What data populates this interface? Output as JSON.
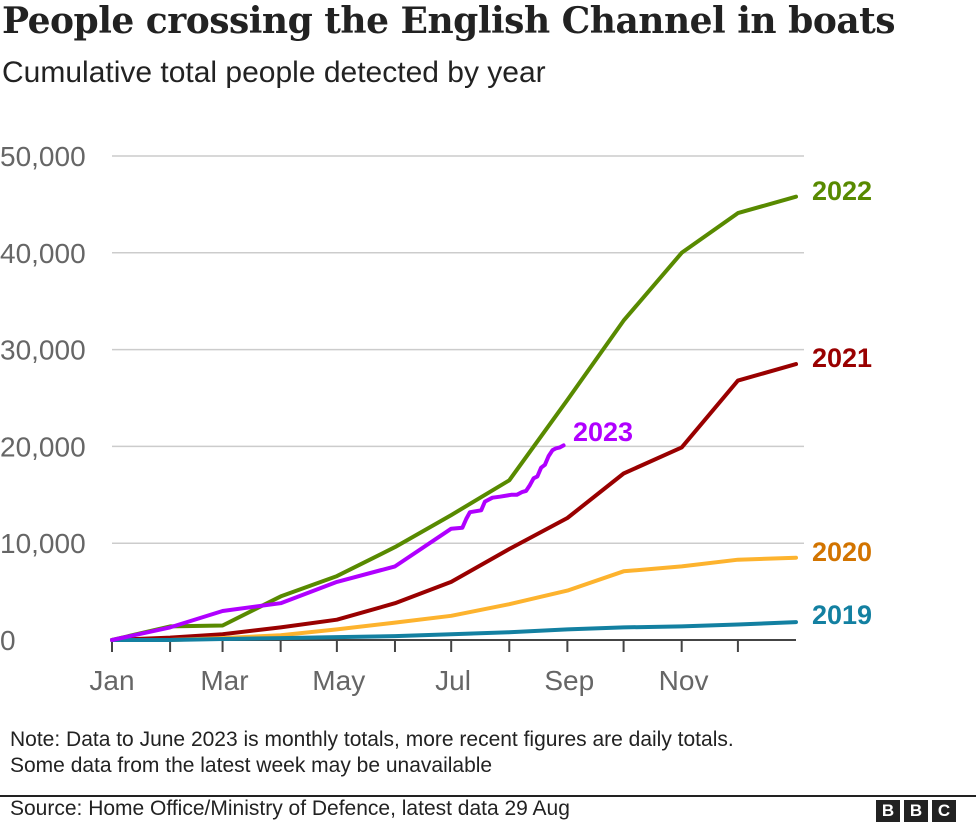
{
  "chart_data": {
    "type": "line",
    "title": "People crossing the English Channel in boats",
    "subtitle": "Cumulative total people detected by year",
    "xlabel": "",
    "ylabel": "",
    "ylim": [
      0,
      50000
    ],
    "yticks": [
      0,
      10000,
      20000,
      30000,
      40000,
      50000
    ],
    "ytick_labels": [
      "0",
      "10,000",
      "20,000",
      "30,000",
      "40,000",
      "50,000"
    ],
    "xtick_labels": [
      "Jan",
      "Mar",
      "May",
      "Jul",
      "Sep",
      "Nov"
    ],
    "xtick_dates": [
      "01-01",
      "03-01",
      "05-01",
      "07-01",
      "09-01",
      "11-01"
    ],
    "grid": true,
    "legend": "direct labels at line ends",
    "series": [
      {
        "name": "2022",
        "color": "#588a00",
        "x": [
          "01-01",
          "01-31",
          "02-28",
          "03-31",
          "04-30",
          "05-31",
          "06-30",
          "07-31",
          "08-31",
          "09-30",
          "10-31",
          "11-30",
          "12-31"
        ],
        "y": [
          0,
          1400,
          1500,
          4500,
          6600,
          9600,
          12900,
          16500,
          24800,
          33000,
          40000,
          44100,
          45800
        ]
      },
      {
        "name": "2021",
        "color": "#990000",
        "x": [
          "01-01",
          "01-31",
          "02-28",
          "03-31",
          "04-30",
          "05-31",
          "06-30",
          "07-31",
          "08-31",
          "09-30",
          "10-31",
          "11-30",
          "12-31"
        ],
        "y": [
          0,
          250,
          600,
          1300,
          2100,
          3800,
          6000,
          9400,
          12600,
          17200,
          19900,
          26800,
          28500
        ]
      },
      {
        "name": "2020",
        "color": "#fdb32e",
        "label_color": "#d27400",
        "x": [
          "01-01",
          "01-31",
          "02-28",
          "03-31",
          "04-30",
          "05-31",
          "06-30",
          "07-31",
          "08-31",
          "09-30",
          "10-31",
          "11-30",
          "12-31"
        ],
        "y": [
          0,
          0,
          200,
          500,
          1100,
          1800,
          2500,
          3700,
          5100,
          7100,
          7600,
          8300,
          8500
        ]
      },
      {
        "name": "2019",
        "color": "#1380a1",
        "x": [
          "01-01",
          "01-31",
          "02-28",
          "03-31",
          "04-30",
          "05-31",
          "06-30",
          "07-31",
          "08-31",
          "09-30",
          "10-31",
          "11-30",
          "12-31"
        ],
        "y": [
          0,
          0,
          100,
          200,
          300,
          400,
          600,
          800,
          1100,
          1300,
          1400,
          1600,
          1850
        ]
      },
      {
        "name": "2023",
        "color": "#b000ff",
        "x": [
          "01-01",
          "01-31",
          "02-28",
          "03-31",
          "04-30",
          "05-31",
          "06-30",
          "07-06",
          "07-08",
          "07-10",
          "07-16",
          "07-18",
          "07-22",
          "07-26",
          "08-01",
          "08-04",
          "08-07",
          "08-09",
          "08-11",
          "08-13",
          "08-15",
          "08-17",
          "08-19",
          "08-21",
          "08-23",
          "08-25",
          "08-27",
          "08-29"
        ],
        "y": [
          0,
          1300,
          3000,
          3800,
          6000,
          7600,
          11500,
          11600,
          12500,
          13200,
          13400,
          14300,
          14700,
          14800,
          15000,
          15000,
          15300,
          15400,
          16000,
          16700,
          16900,
          17800,
          18100,
          19000,
          19600,
          19800,
          19900,
          20100
        ]
      }
    ]
  },
  "note": [
    "Note: Data to June 2023 is monthly totals, more recent figures are daily totals.",
    "Some data from the latest week may be unavailable"
  ],
  "source": "Source: Home Office/Ministry of Defence, latest data 29 Aug",
  "logo": [
    "B",
    "B",
    "C"
  ]
}
